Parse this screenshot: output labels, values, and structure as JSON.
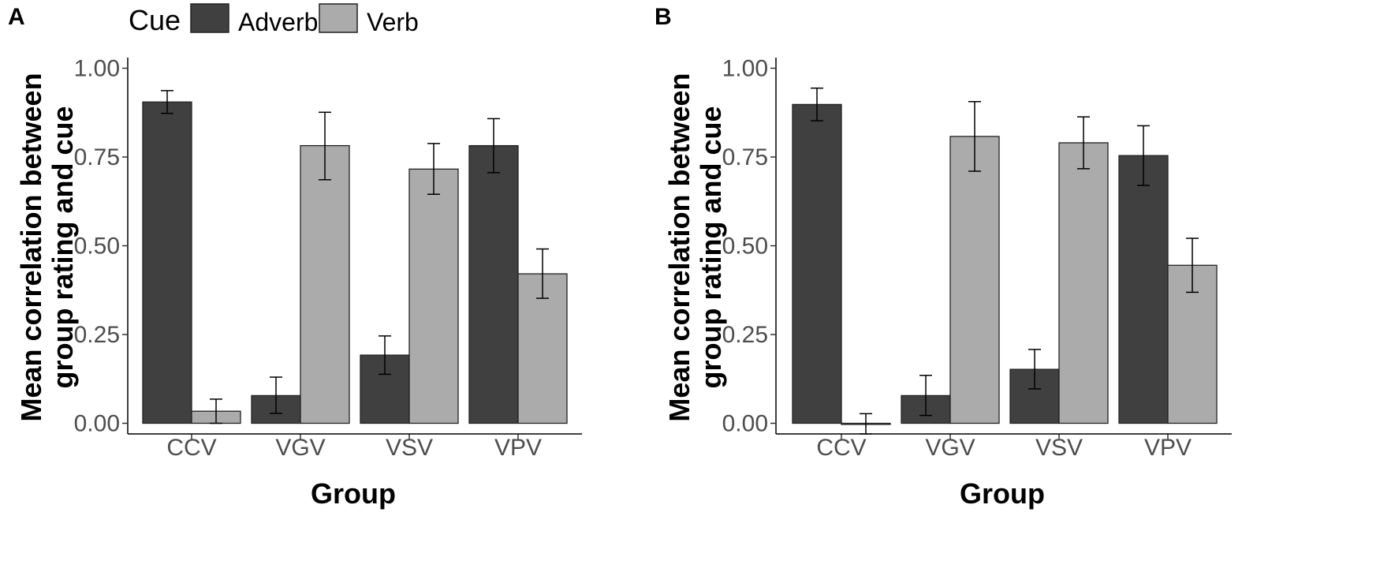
{
  "legend": {
    "title": "Cue",
    "entries": [
      {
        "label": "Adverb",
        "color": "#404040"
      },
      {
        "label": "Verb",
        "color": "#ababab"
      }
    ]
  },
  "chart_data": [
    {
      "type": "bar",
      "panel": "A",
      "xlabel": "Group",
      "ylabel": "Mean correlation between group rating and cue",
      "ylabel_lines": [
        "Mean correlation between",
        "group rating and cue"
      ],
      "ylim": [
        -0.03,
        1.03
      ],
      "yticks": [
        "0.00",
        "0.25",
        "0.50",
        "0.75",
        "1.00"
      ],
      "ytick_values": [
        0,
        0.25,
        0.5,
        0.75,
        1.0
      ],
      "categories": [
        "CCV",
        "VGV",
        "VSV",
        "VPV"
      ],
      "series": [
        {
          "name": "Adverb",
          "values": [
            0.905,
            0.078,
            0.192,
            0.782
          ],
          "err_low": [
            0.873,
            0.028,
            0.138,
            0.706
          ],
          "err_high": [
            0.937,
            0.13,
            0.246,
            0.858
          ]
        },
        {
          "name": "Verb",
          "values": [
            0.034,
            0.782,
            0.716,
            0.421
          ],
          "err_low": [
            0.0,
            0.686,
            0.645,
            0.352
          ],
          "err_high": [
            0.068,
            0.876,
            0.788,
            0.491
          ]
        }
      ]
    },
    {
      "type": "bar",
      "panel": "B",
      "xlabel": "Group",
      "ylabel": "Mean correlation between group rating and cue",
      "ylabel_lines": [
        "Mean correlation between",
        "group rating and cue"
      ],
      "ylim": [
        -0.03,
        1.03
      ],
      "yticks": [
        "0.00",
        "0.25",
        "0.50",
        "0.75",
        "1.00"
      ],
      "ytick_values": [
        0,
        0.25,
        0.5,
        0.75,
        1.0
      ],
      "categories": [
        "CCV",
        "VGV",
        "VSV",
        "VPV"
      ],
      "series": [
        {
          "name": "Adverb",
          "values": [
            0.898,
            0.078,
            0.152,
            0.754
          ],
          "err_low": [
            0.852,
            0.022,
            0.097,
            0.67
          ],
          "err_high": [
            0.944,
            0.135,
            0.208,
            0.838
          ]
        },
        {
          "name": "Verb",
          "values": [
            -0.002,
            0.808,
            0.79,
            0.445
          ],
          "err_low": [
            -0.03,
            0.71,
            0.717,
            0.369
          ],
          "err_high": [
            0.027,
            0.906,
            0.863,
            0.521
          ]
        }
      ]
    }
  ]
}
